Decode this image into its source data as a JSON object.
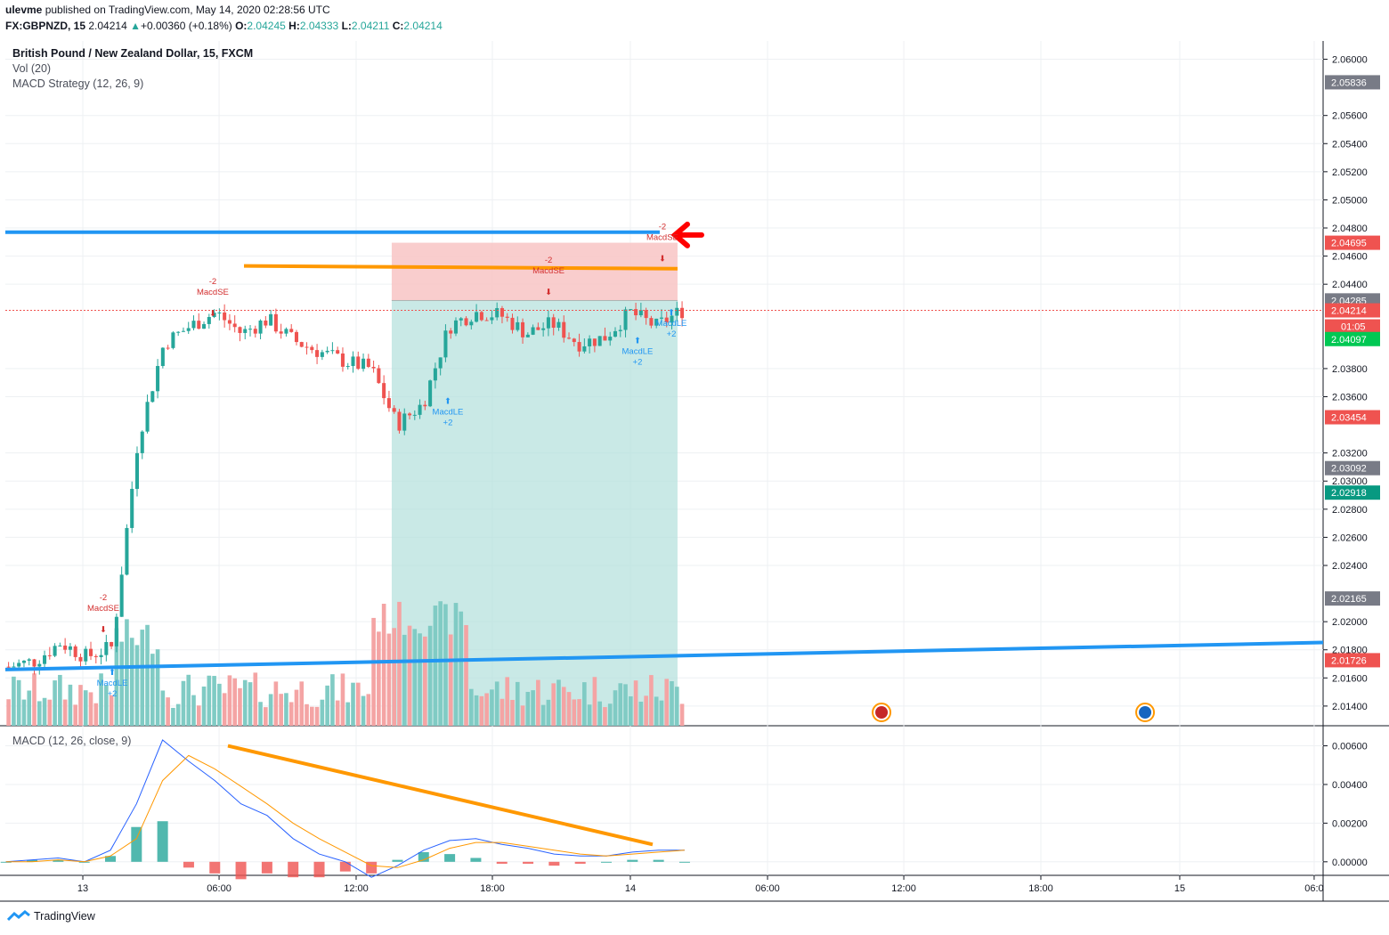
{
  "header": {
    "user": "ulevme",
    "published": "published on TradingView.com, May 14, 2020 02:28:56 UTC",
    "symbol": "FX:GBPNZD, 15",
    "last": "2.04214",
    "change": "+0.00360 (+0.18%)",
    "o_label": "O:",
    "o": "2.04245",
    "h_label": "H:",
    "h": "2.04333",
    "l_label": "L:",
    "l": "2.04211",
    "c_label": "C:",
    "c": "2.04214"
  },
  "legend": {
    "title": "British Pound / New Zealand Dollar, 15, FXCM",
    "vol": "Vol (20)",
    "strategy": "MACD Strategy (12, 26, 9)"
  },
  "macd_legend": "MACD (12, 26, close, 9)",
  "footer": {
    "brand": "TradingView"
  },
  "colors": {
    "up": "#26a69a",
    "down": "#ef5350",
    "blue_line": "#2196f3",
    "orange_line": "#ff9800",
    "profit_zone": "#b2dfdb",
    "loss_zone": "#f8c4c4"
  },
  "chart_data": [
    {
      "type": "candlestick",
      "title": "British Pound / New Zealand Dollar, 15, FXCM",
      "x_ticks": [
        "13",
        "06:00",
        "12:00",
        "18:00",
        "14",
        "06:00",
        "12:00",
        "18:00",
        "15",
        "06:0"
      ],
      "y_ticks": [
        "2.06000",
        "2.05600",
        "2.05400",
        "2.05200",
        "2.05000",
        "2.04800",
        "2.04600",
        "2.04400",
        "2.03800",
        "2.03600",
        "2.03200",
        "2.03000",
        "2.02800",
        "2.02600",
        "2.02400",
        "2.02000",
        "2.01800",
        "2.01600",
        "2.01400"
      ],
      "ylim": [
        2.0126,
        2.0613
      ],
      "price_tags": [
        {
          "label": "2.05836",
          "value": 2.05836,
          "color": "#787b86"
        },
        {
          "label": "2.04695",
          "value": 2.04695,
          "color": "#ef5350"
        },
        {
          "label": "2.04285",
          "value": 2.04285,
          "color": "#787b86"
        },
        {
          "label": "2.04214",
          "value": 2.04214,
          "color": "#ef5350"
        },
        {
          "label": "01:05",
          "value": 2.041,
          "color": "#ef5350"
        },
        {
          "label": "2.04097",
          "value": 2.0401,
          "color": "#00c853"
        },
        {
          "label": "2.03454",
          "value": 2.03454,
          "color": "#ef5350"
        },
        {
          "label": "2.03092",
          "value": 2.03092,
          "color": "#787b86"
        },
        {
          "label": "2.02918",
          "value": 2.02918,
          "color": "#089981"
        },
        {
          "label": "2.02165",
          "value": 2.02165,
          "color": "#787b86"
        },
        {
          "label": "2.01726",
          "value": 2.01726,
          "color": "#ef5350"
        }
      ],
      "series": [
        {
          "name": "Close",
          "x": [
            "00:00",
            "01:00",
            "02:00",
            "03:00",
            "04:00",
            "05:00",
            "06:00",
            "07:00",
            "08:00",
            "09:00",
            "10:00",
            "11:00",
            "12:00",
            "13:00",
            "14:00",
            "15:00",
            "16:00",
            "17:00",
            "18:00",
            "19:00",
            "20:00",
            "21:00",
            "22:00",
            "23:00",
            "00:00",
            "01:00",
            "02:00"
          ],
          "values": [
            2.0168,
            2.0172,
            2.0185,
            2.0175,
            2.0182,
            2.033,
            2.0398,
            2.041,
            2.042,
            2.0405,
            2.0415,
            2.04,
            2.0392,
            2.0385,
            2.038,
            2.034,
            2.0355,
            2.041,
            2.042,
            2.0418,
            2.0405,
            2.0412,
            2.0398,
            2.0402,
            2.042,
            2.041,
            2.04214
          ]
        }
      ],
      "signals": [
        {
          "label": "MacdSE",
          "qty": "-2",
          "time": "03:00"
        },
        {
          "label": "MacdLE",
          "qty": "+2",
          "time": "03:30"
        },
        {
          "label": "MacdSE",
          "qty": "-2",
          "time": "06:00"
        },
        {
          "label": "MacdLE",
          "qty": "+2",
          "time": "16:30"
        },
        {
          "label": "MacdSE",
          "qty": "-2",
          "time": "20:30"
        },
        {
          "label": "MacdLE",
          "qty": "+2",
          "time": "00:30"
        },
        {
          "label": "MacdSE",
          "qty": "-2",
          "time": "01:30"
        },
        {
          "label": "MacdLE",
          "qty": "+2",
          "time": "01:45"
        }
      ]
    },
    {
      "type": "line",
      "title": "MACD (12, 26, close, 9)",
      "y_ticks": [
        "0.00600",
        "0.00400",
        "0.00200",
        "0.00000"
      ],
      "ylim": [
        -0.0007,
        0.0069
      ],
      "series": [
        {
          "values": [
            0.0,
            0.0001,
            0.0002,
            0.0,
            0.0006,
            0.003,
            0.0063,
            0.0052,
            0.0042,
            0.003,
            0.0024,
            0.0012,
            0.0004,
            0.0,
            -0.0008,
            -0.0002,
            0.0006,
            0.0011,
            0.0012,
            0.0009,
            0.0007,
            0.0004,
            0.0003,
            0.0003,
            0.0005,
            0.0006,
            0.0006
          ]
        },
        {
          "values": [
            0.0,
            0.0,
            0.0001,
            0.0,
            0.0003,
            0.0012,
            0.0042,
            0.0055,
            0.0048,
            0.0039,
            0.003,
            0.002,
            0.0012,
            0.0005,
            -0.0002,
            -0.0003,
            0.0001,
            0.0007,
            0.001,
            0.001,
            0.0008,
            0.0006,
            0.0004,
            0.0003,
            0.0004,
            0.0005,
            0.0006
          ]
        }
      ]
    }
  ]
}
